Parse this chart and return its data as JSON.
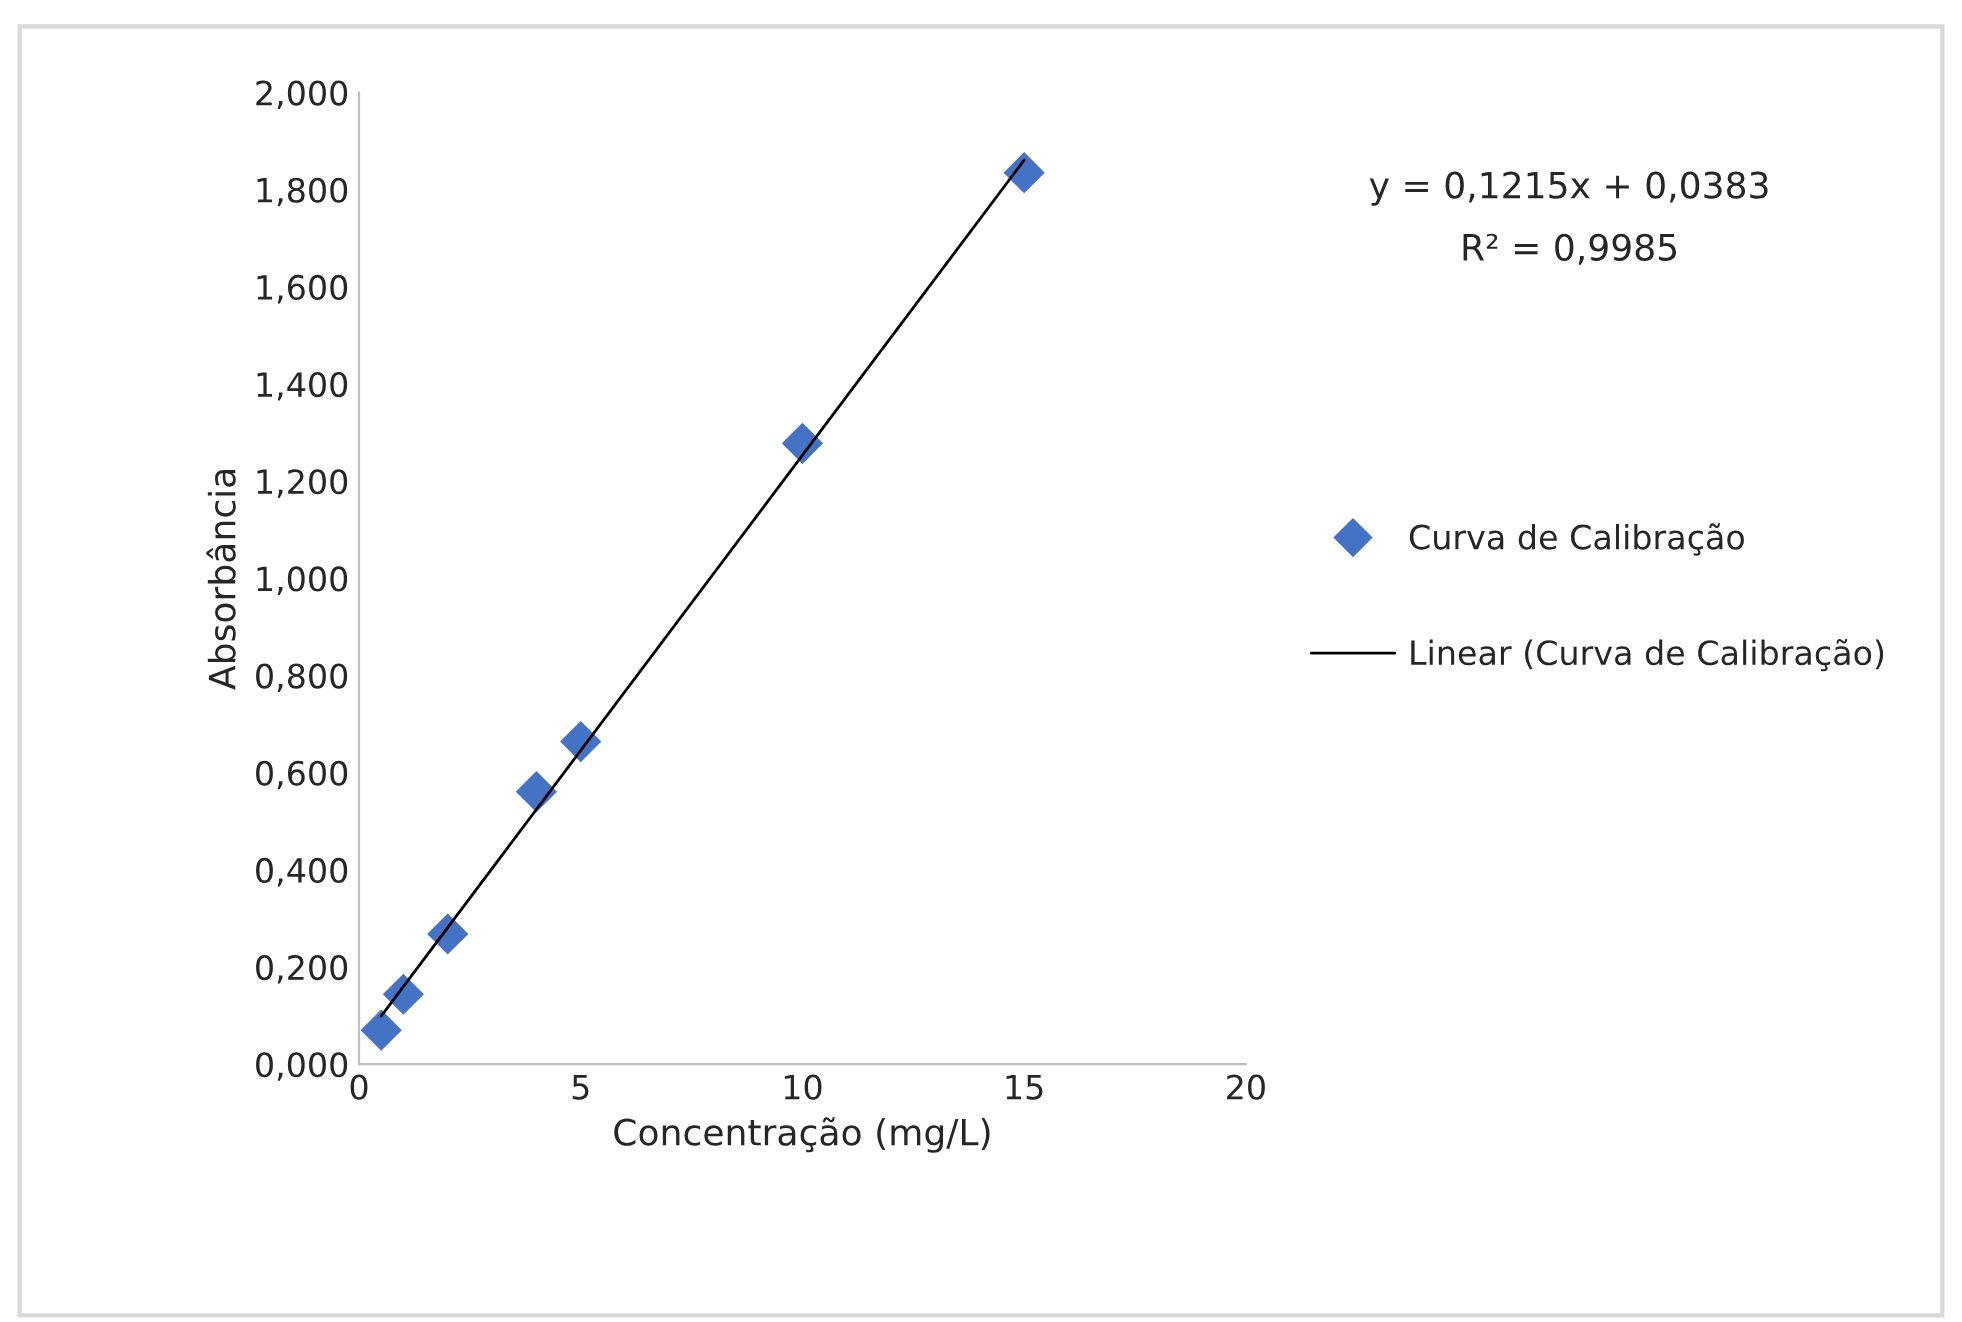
{
  "chart_data": {
    "type": "scatter",
    "xlabel": "Concentração (mg/L)",
    "ylabel": "Absorbância",
    "series": [
      {
        "name": "Curva de Calibração",
        "color": "#4472c4",
        "marker": "diamond",
        "x": [
          0.5,
          1,
          2,
          4,
          5,
          10,
          15
        ],
        "values": [
          0.07,
          0.144,
          0.268,
          0.561,
          0.664,
          1.278,
          1.835
        ]
      },
      {
        "name": "Linear (Curva de Calibração)",
        "type": "line",
        "color": "#000000",
        "marker": "none",
        "line_style": "solid",
        "x": [
          0.5,
          15
        ],
        "values": [
          0.099,
          1.861
        ]
      }
    ],
    "xlim": [
      0,
      20
    ],
    "xticks": [
      0,
      5,
      10,
      15,
      20
    ],
    "ylim": [
      0,
      2
    ],
    "yticks": [
      {
        "value": 0,
        "label": "0,000"
      },
      {
        "value": 0.2,
        "label": "0,200"
      },
      {
        "value": 0.4,
        "label": "0,400"
      },
      {
        "value": 0.6,
        "label": "0,600"
      },
      {
        "value": 0.8,
        "label": "0,800"
      },
      {
        "value": 1.0,
        "label": "1,000"
      },
      {
        "value": 1.2,
        "label": "1,200"
      },
      {
        "value": 1.4,
        "label": "1,400"
      },
      {
        "value": 1.6,
        "label": "1,600"
      },
      {
        "value": 1.8,
        "label": "1,800"
      },
      {
        "value": 2.0,
        "label": "2,000"
      }
    ],
    "annotations": [
      "y = 0,1215x + 0,0383",
      "R² = 0,9985"
    ],
    "grid": false,
    "legend": "right"
  }
}
